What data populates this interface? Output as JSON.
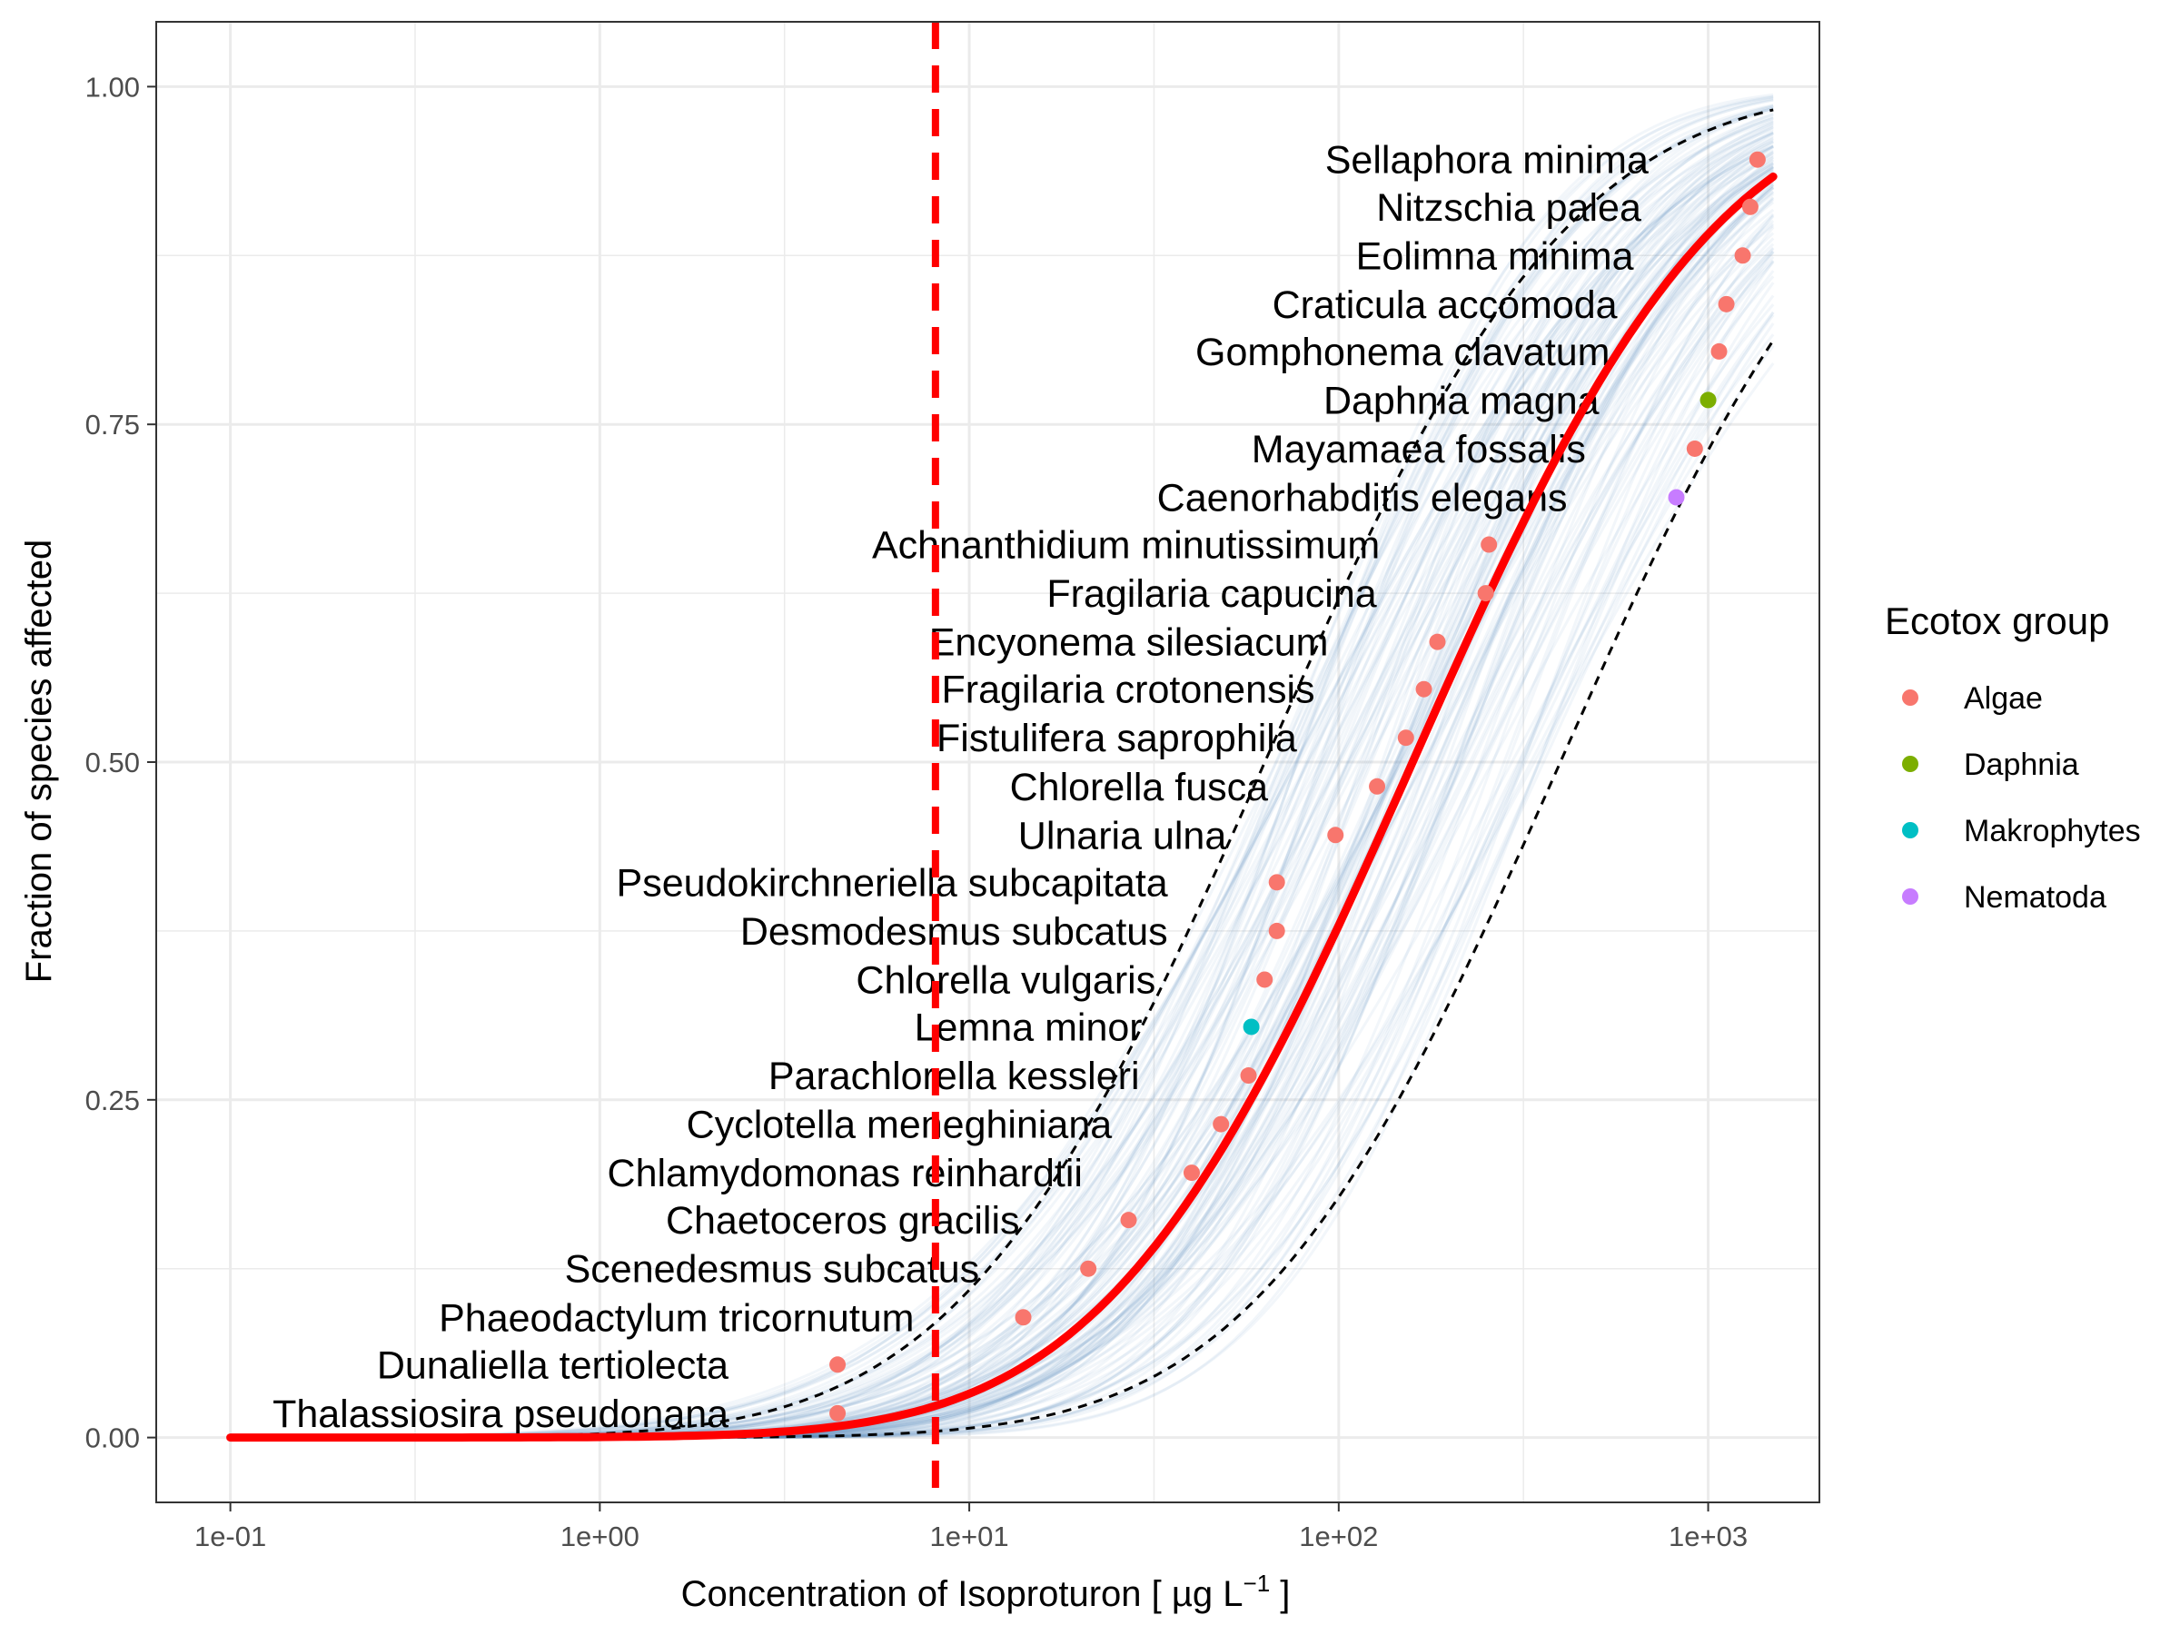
{
  "chart_data": {
    "type": "scatter",
    "xlabel": "Concentration of Isoproturon [ µg L",
    "xlabel_superscript": "−1",
    "xlabel_suffix": " ]",
    "ylabel": "Fraction of species affected",
    "x_scale": "log10",
    "xlim": [
      0.063,
      2000
    ],
    "ylim": [
      -0.048,
      1.048
    ],
    "grid": true,
    "x_ticks": [
      0.1,
      1,
      10,
      100,
      1000
    ],
    "x_tick_labels": [
      "1e-01",
      "1e+00",
      "1e+01",
      "1e+02",
      "1e+03"
    ],
    "y_ticks": [
      0,
      0.25,
      0.5,
      0.75,
      1
    ],
    "y_tick_labels": [
      "0.00",
      "0.25",
      "0.50",
      "0.75",
      "1.00"
    ],
    "ssd_fit": {
      "median_log10": 2.2,
      "sd_log10": 0.65,
      "color": "#ff0000"
    },
    "confidence_band": {
      "lower_median_log10": 2.6,
      "upper_median_log10": 1.8,
      "sd_log10": 0.65,
      "style": "dashed",
      "color": "#000000"
    },
    "bootstrap_curves": {
      "count": 120,
      "color": "#4a7fbf"
    },
    "hc5_line": {
      "x": 8.1,
      "color": "#ff0000",
      "style": "dashed"
    },
    "legend": {
      "title": "Ecotox group",
      "position": "right",
      "items": [
        {
          "label": "Algae",
          "color": "#f8766d"
        },
        {
          "label": "Daphnia",
          "color": "#7cae00"
        },
        {
          "label": "Makrophytes",
          "color": "#00bfc4"
        },
        {
          "label": "Nematoda",
          "color": "#c77cff"
        }
      ]
    },
    "points": [
      {
        "species": "Thalassiosira pseudonana",
        "x": 4.4,
        "y": 0.018,
        "group": "Algae"
      },
      {
        "species": "Dunaliella tertiolecta",
        "x": 4.4,
        "y": 0.054,
        "group": "Algae"
      },
      {
        "species": "Phaeodactylum tricornutum",
        "x": 14,
        "y": 0.089,
        "group": "Algae"
      },
      {
        "species": "Scenedesmus subcatus",
        "x": 21,
        "y": 0.125,
        "group": "Algae"
      },
      {
        "species": "Chaetoceros gracilis",
        "x": 27,
        "y": 0.161,
        "group": "Algae"
      },
      {
        "species": "Chlamydomonas reinhardtii",
        "x": 40,
        "y": 0.196,
        "group": "Algae"
      },
      {
        "species": "Cyclotella meneghiniana",
        "x": 48,
        "y": 0.232,
        "group": "Algae"
      },
      {
        "species": "Parachlorella kessleri",
        "x": 57,
        "y": 0.268,
        "group": "Algae"
      },
      {
        "species": "Lemna minor",
        "x": 58,
        "y": 0.304,
        "group": "Makrophytes"
      },
      {
        "species": "Chlorella vulgaris",
        "x": 63,
        "y": 0.339,
        "group": "Algae"
      },
      {
        "species": "Desmodesmus subcatus",
        "x": 68,
        "y": 0.375,
        "group": "Algae"
      },
      {
        "species": "Pseudokirchneriella subcapitata",
        "x": 68,
        "y": 0.411,
        "group": "Algae"
      },
      {
        "species": "Ulnaria ulna",
        "x": 98,
        "y": 0.446,
        "group": "Algae"
      },
      {
        "species": "Chlorella fusca",
        "x": 127,
        "y": 0.482,
        "group": "Algae"
      },
      {
        "species": "Fistulifera saprophila",
        "x": 152,
        "y": 0.518,
        "group": "Algae"
      },
      {
        "species": "Fragilaria crotonensis",
        "x": 170,
        "y": 0.554,
        "group": "Algae"
      },
      {
        "species": "Encyonema silesiacum",
        "x": 185,
        "y": 0.589,
        "group": "Algae"
      },
      {
        "species": "Fragilaria capucina",
        "x": 250,
        "y": 0.625,
        "group": "Algae"
      },
      {
        "species": "Achnanthidium minutissimum",
        "x": 255,
        "y": 0.661,
        "group": "Algae"
      },
      {
        "species": "Caenorhabditis elegans",
        "x": 820,
        "y": 0.696,
        "group": "Nematoda"
      },
      {
        "species": "Mayamaea fossalis",
        "x": 920,
        "y": 0.732,
        "group": "Algae"
      },
      {
        "species": "Daphnia magna",
        "x": 1000,
        "y": 0.768,
        "group": "Daphnia"
      },
      {
        "species": "Gomphonema clavatum",
        "x": 1070,
        "y": 0.804,
        "group": "Algae"
      },
      {
        "species": "Craticula accomoda",
        "x": 1120,
        "y": 0.839,
        "group": "Algae"
      },
      {
        "species": "Eolimna minima",
        "x": 1240,
        "y": 0.875,
        "group": "Algae"
      },
      {
        "species": "Nitzschia palea",
        "x": 1300,
        "y": 0.911,
        "group": "Algae"
      },
      {
        "species": "Sellaphora minima",
        "x": 1360,
        "y": 0.946,
        "group": "Algae"
      }
    ]
  }
}
